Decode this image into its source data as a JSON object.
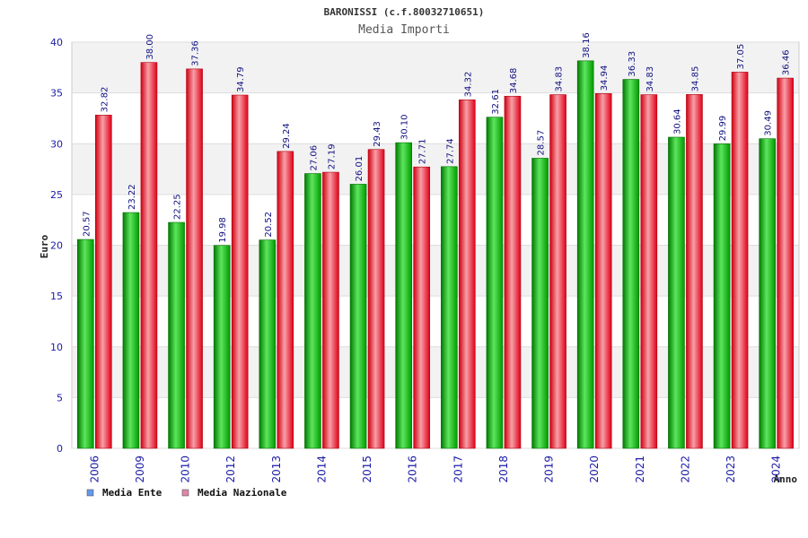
{
  "chart_data": {
    "type": "bar",
    "title": "BARONISSI (c.f.80032710651)",
    "subtitle": "Media Importi",
    "xlabel": "Anno",
    "ylabel": "Euro",
    "ylim": [
      0,
      40
    ],
    "yticks": [
      "0",
      "5",
      "10",
      "15",
      "20",
      "25",
      "30",
      "35",
      "40"
    ],
    "grid": true,
    "legend_position": "bottom-left",
    "categories": [
      "2006",
      "2009",
      "2010",
      "2012",
      "2013",
      "2014",
      "2015",
      "2016",
      "2017",
      "2018",
      "2019",
      "2020",
      "2021",
      "2022",
      "2023",
      "2024"
    ],
    "series": [
      {
        "name": "Media Ente",
        "color": "#00aa00",
        "legend_color": "#6699ee",
        "values": [
          20.57,
          23.22,
          22.25,
          19.98,
          20.52,
          27.06,
          26.01,
          30.1,
          27.74,
          32.61,
          28.57,
          38.16,
          36.33,
          30.64,
          29.99,
          30.49
        ],
        "labels": [
          "20.57",
          "23.22",
          "22.25",
          "19.98",
          "20.52",
          "27.06",
          "26.01",
          "30.10",
          "27.74",
          "32.61",
          "28.57",
          "38.16",
          "36.33",
          "30.64",
          "29.99",
          "30.49"
        ]
      },
      {
        "name": "Media Nazionale",
        "color": "#ee1122",
        "legend_color": "#dd88aa",
        "values": [
          32.82,
          38.0,
          37.36,
          34.79,
          29.24,
          27.19,
          29.43,
          27.71,
          34.32,
          34.68,
          34.83,
          34.94,
          34.83,
          34.85,
          37.05,
          36.46
        ],
        "labels": [
          "32.82",
          "38.00",
          "37.36",
          "34.79",
          "29.24",
          "27.19",
          "29.43",
          "27.71",
          "34.32",
          "34.68",
          "34.83",
          "34.94",
          "34.83",
          "34.85",
          "37.05",
          "36.46"
        ]
      }
    ]
  }
}
